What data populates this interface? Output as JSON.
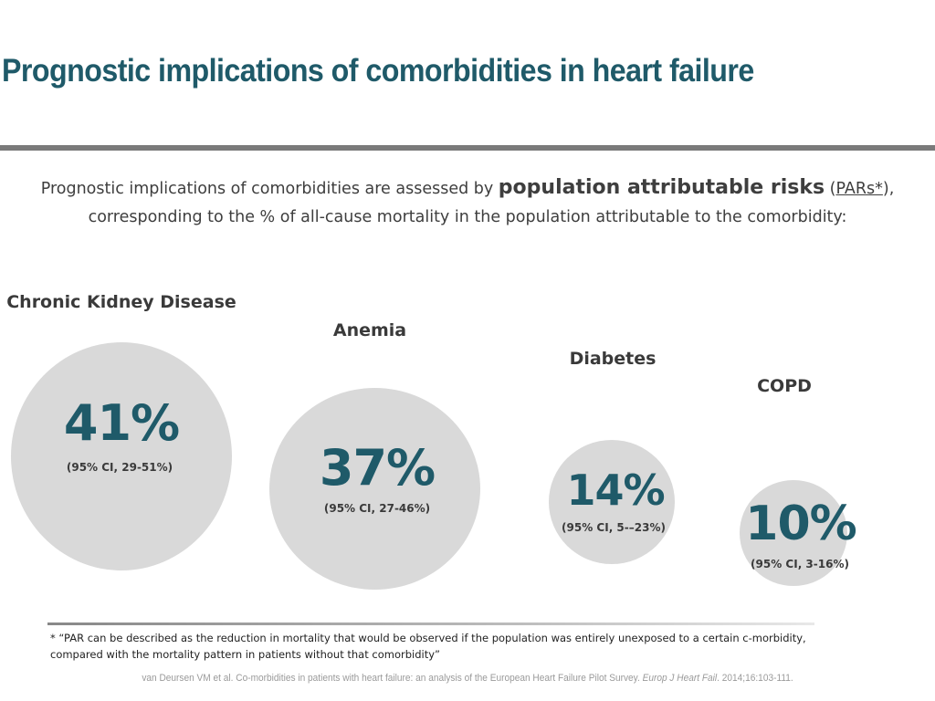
{
  "title": "Prognostic implications of comorbidities in heart failure",
  "intro": {
    "before": "Prognostic implications of comorbidities are assessed by ",
    "strong": "population attributable risks",
    "paren_open": " (",
    "link": "PARs*",
    "after": "),",
    "line2": "corresponding to the % of all-cause mortality in the population attributable to the comorbidity:"
  },
  "items": [
    {
      "label": "Chronic Kidney Disease",
      "value": "41%",
      "ci": "(95% CI, 29-51%)"
    },
    {
      "label": "Anemia",
      "value": "37%",
      "ci": "(95% CI, 27-46%)"
    },
    {
      "label": "Diabetes",
      "value": "14%",
      "ci": "(95% CI, 5-–23%)"
    },
    {
      "label": "COPD",
      "value": "10%",
      "ci": "(95% CI, 3-16%)"
    }
  ],
  "colors": {
    "accent": "#1f5a69",
    "circle": "#d9d9d9",
    "rule": "#7a7a7a"
  },
  "footnote": {
    "line1": "* “PAR can be described as the reduction in mortality that would be observed if the population was entirely unexposed to a certain c-morbidity,",
    "line2": "compared with the mortality pattern in patients without that comorbidity”"
  },
  "citation": {
    "text": "van Deursen VM et al. Co-morbidities in patients with heart failure: an analysis of the European Heart Failure Pilot Survey. ",
    "journal": "Europ J Heart Fail",
    "tail": ". 2014;16:103-111."
  }
}
